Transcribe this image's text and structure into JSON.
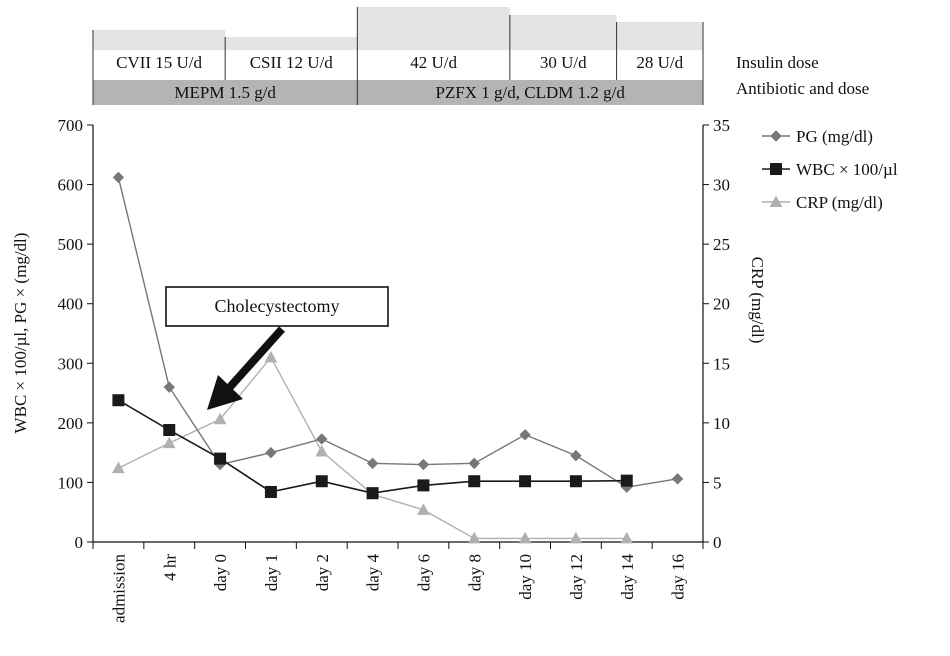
{
  "chart_data": {
    "type": "line",
    "categories": [
      "admission",
      "4 hr",
      "day 0",
      "day 1",
      "day 2",
      "day 4",
      "day 6",
      "day 8",
      "day 10",
      "day 12",
      "day 14",
      "day 16"
    ],
    "y_left": {
      "label": "WBC × 100/µl, PG × (mg/dl)",
      "range": [
        0,
        700
      ],
      "ticks": [
        "0",
        "100",
        "200",
        "300",
        "400",
        "500",
        "600",
        "700"
      ]
    },
    "y_right": {
      "label": "CRP (mg/dl)",
      "range": [
        0,
        35
      ],
      "ticks": [
        "0",
        "5",
        "10",
        "15",
        "20",
        "25",
        "30",
        "35"
      ]
    },
    "series": [
      {
        "name": "PG (mg/dl)",
        "axis": "left",
        "marker": "diamond",
        "color": "#777777",
        "values": [
          612,
          260,
          130,
          150,
          173,
          132,
          130,
          132,
          180,
          145,
          92,
          106
        ]
      },
      {
        "name": "WBC × 100/µl",
        "axis": "left",
        "marker": "square",
        "color": "#1a1a1a",
        "values": [
          238,
          188,
          140,
          84,
          102,
          82,
          95,
          102,
          102,
          102,
          103,
          null
        ]
      },
      {
        "name": "CRP (mg/dl)",
        "axis": "right",
        "marker": "triangle",
        "color": "#b0b0b0",
        "values": [
          6.2,
          8.3,
          10.3,
          15.5,
          7.6,
          4.0,
          2.7,
          0.3,
          0.3,
          0.3,
          0.3,
          null
        ]
      }
    ],
    "annotation": {
      "text": "Cholecystectomy",
      "points_to": "day 0"
    },
    "legend_position": "top-right",
    "grid": false
  },
  "timeline": {
    "insulin_label": "Insulin dose",
    "antibiotic_label": "Antibiotic and dose",
    "insulin": [
      {
        "text": "CVII 15 U/d",
        "from": 0,
        "to": 2.6
      },
      {
        "text": "CSII 12 U/d",
        "from": 2.6,
        "to": 5.2
      },
      {
        "text": "42 U/d",
        "from": 5.2,
        "to": 8.2
      },
      {
        "text": "30 U/d",
        "from": 8.2,
        "to": 10.3
      },
      {
        "text": "28 U/d",
        "from": 10.3,
        "to": 12.0
      }
    ],
    "antibiotic": [
      {
        "text": "MEPM 1.5 g/d",
        "from": 0,
        "to": 5.2
      },
      {
        "text": "PZFX 1 g/d, CLDM 1.2 g/d",
        "from": 5.2,
        "to": 12.0
      }
    ]
  }
}
